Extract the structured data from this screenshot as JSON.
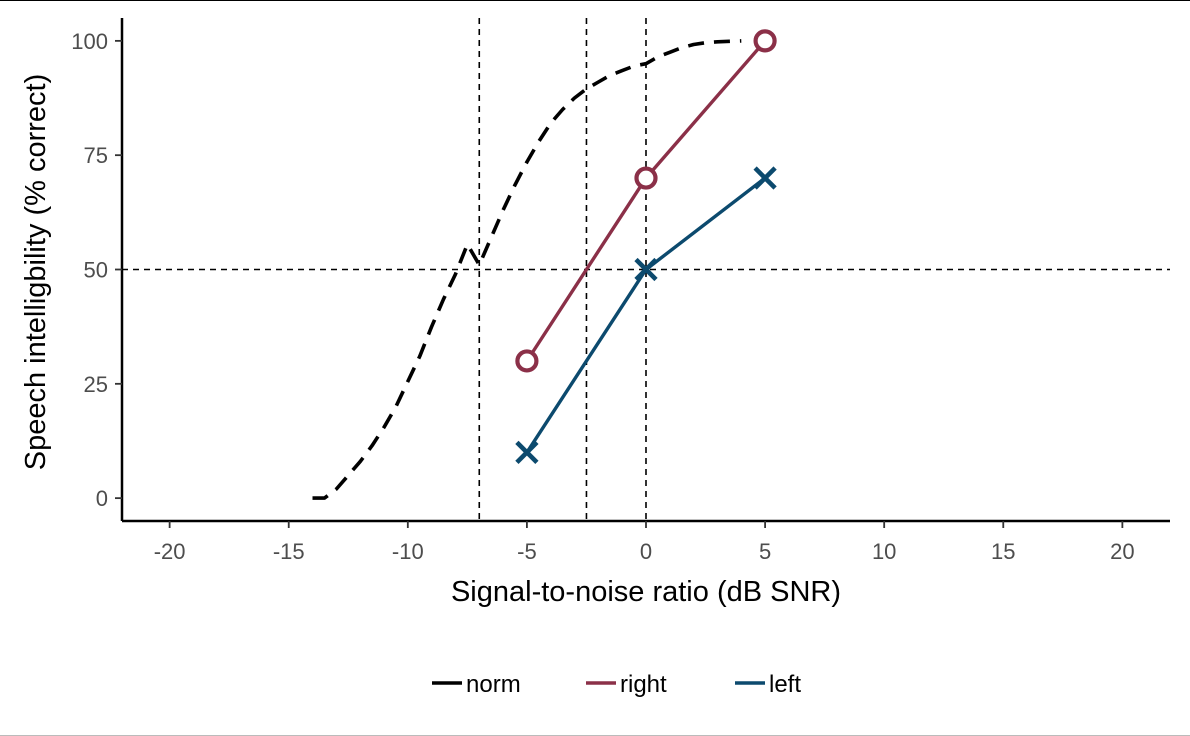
{
  "chart_data": {
    "type": "line",
    "xlabel": "Signal-to-noise ratio (dB SNR)",
    "ylabel": "Speech intelligbility (% correct)",
    "xlim": [
      -22,
      22
    ],
    "ylim": [
      -5,
      105
    ],
    "x_ticks": [
      -20,
      -15,
      -10,
      -5,
      0,
      5,
      10,
      15,
      20
    ],
    "x_tick_labels": [
      "-20",
      "-15",
      "-10",
      "-5",
      "0",
      "5",
      "10",
      "15",
      "20"
    ],
    "y_ticks": [
      0,
      25,
      50,
      75,
      100
    ],
    "y_tick_labels": [
      "0",
      "25",
      "50",
      "75",
      "100"
    ],
    "grid": false,
    "legend_position": "bottom",
    "reference_lines": {
      "vertical": [
        -7,
        -2.5,
        0
      ],
      "horizontal": [
        50
      ]
    },
    "series": [
      {
        "name": "norm",
        "color": "#000000",
        "style": "dashed",
        "marker": "none",
        "x": [
          -14,
          -13.5,
          -13,
          -12.5,
          -12,
          -11.5,
          -11,
          -10.5,
          -10,
          -9.5,
          -9,
          -8.5,
          -8,
          -7.5,
          -7,
          -6.5,
          -6,
          -5.5,
          -5,
          -4.5,
          -4,
          -3.5,
          -3,
          -2.5,
          -2,
          -1.5,
          -1,
          -0.5,
          0,
          0.5,
          1,
          1.5,
          2,
          2.5,
          3,
          3.5,
          4
        ],
        "y": [
          0,
          0,
          2,
          5,
          8,
          11.5,
          15.5,
          20,
          25.5,
          31,
          37.5,
          43.5,
          49,
          55.5,
          51,
          57,
          63,
          68.5,
          73.5,
          78,
          82,
          85,
          87.5,
          89.5,
          91,
          92.5,
          93.5,
          94.5,
          95,
          96.5,
          97.5,
          98.5,
          99.2,
          99.6,
          99.8,
          99.9,
          100
        ]
      },
      {
        "name": "right",
        "color": "#8b3048",
        "style": "solid",
        "marker": "circle",
        "x": [
          -5,
          0,
          5
        ],
        "y": [
          30,
          70,
          100
        ]
      },
      {
        "name": "left",
        "color": "#0c4a6e",
        "style": "solid",
        "marker": "cross",
        "x": [
          -5,
          0,
          5
        ],
        "y": [
          10,
          50,
          70
        ]
      }
    ]
  }
}
